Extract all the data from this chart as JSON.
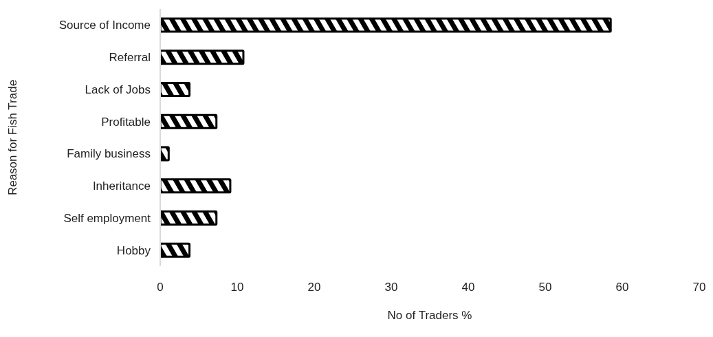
{
  "chart_data": {
    "type": "bar",
    "orientation": "horizontal",
    "xlabel": "No of Traders %",
    "ylabel": "Reason for Fish Trade",
    "categories": [
      "Source of Income",
      "Referral",
      "Lack of Jobs",
      "Profitable",
      "Family business",
      "Inheritance",
      "Self employment",
      "Hobby"
    ],
    "values": [
      58.5,
      10.8,
      3.8,
      7.3,
      1.1,
      9.1,
      7.3,
      3.8
    ],
    "color": "#000000",
    "xlim": [
      0,
      70
    ],
    "xticks": [
      0,
      10,
      20,
      30,
      40,
      50,
      60,
      70
    ],
    "grid": false,
    "legend": false
  }
}
